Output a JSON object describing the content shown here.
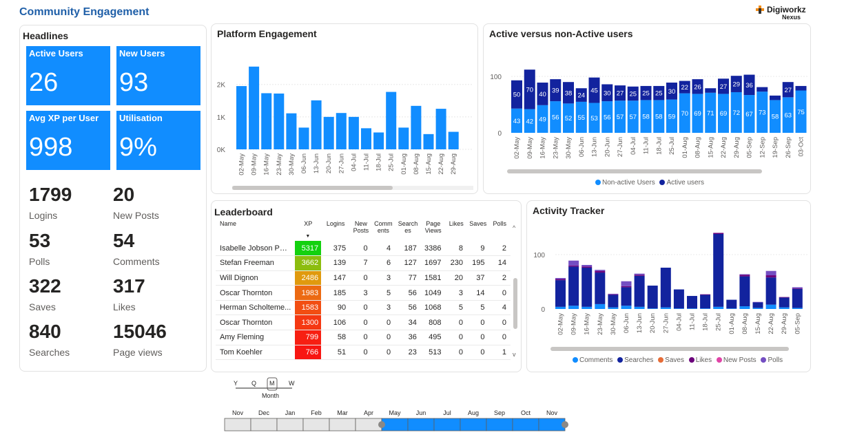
{
  "page": {
    "title": "Community Engagement"
  },
  "logo": {
    "line1": "Digiworkz",
    "line2": "Nexus"
  },
  "headlines": {
    "title": "Headlines",
    "kpis": [
      {
        "label": "Active Users",
        "value": "26"
      },
      {
        "label": "New Users",
        "value": "93"
      },
      {
        "label": "Avg XP per User",
        "value": "998"
      },
      {
        "label": "Utilisation",
        "value": "9%"
      }
    ],
    "stats": [
      {
        "value": "1799",
        "label": "Logins"
      },
      {
        "value": "20",
        "label": "New Posts"
      },
      {
        "value": "53",
        "label": "Polls"
      },
      {
        "value": "54",
        "label": "Comments"
      },
      {
        "value": "322",
        "label": "Saves"
      },
      {
        "value": "317",
        "label": "Likes"
      },
      {
        "value": "840",
        "label": "Searches"
      },
      {
        "value": "15046",
        "label": "Page views"
      }
    ]
  },
  "chart_data": [
    {
      "id": "platform_engagement",
      "type": "bar",
      "title": "Platform Engagement",
      "categories": [
        "02-May",
        "09-May",
        "16-May",
        "23-May",
        "30-May",
        "06-Jun",
        "13-Jun",
        "20-Jun",
        "27-Jun",
        "04-Jul",
        "11-Jul",
        "18-Jul",
        "25-Jul",
        "01-Aug",
        "08-Aug",
        "15-Aug",
        "22-Aug",
        "29-Aug"
      ],
      "values": [
        1950,
        2550,
        1730,
        1720,
        1110,
        670,
        1510,
        1000,
        1120,
        1000,
        650,
        520,
        1770,
        670,
        1340,
        470,
        1250,
        540
      ],
      "yticks": [
        "0K",
        "1K",
        "2K"
      ],
      "ylim": [
        0,
        2800
      ],
      "color": "#118dff"
    },
    {
      "id": "active_vs_nonactive",
      "type": "bar",
      "stacked": true,
      "title": "Active versus non-Active users",
      "categories": [
        "02-May",
        "09-May",
        "16-May",
        "23-May",
        "30-May",
        "06-Jun",
        "13-Jun",
        "20-Jun",
        "27-Jun",
        "04-Jul",
        "11-Jul",
        "18-Jul",
        "25-Jul",
        "01-Aug",
        "08-Aug",
        "15-Aug",
        "22-Aug",
        "29-Aug",
        "05-Sep",
        "12-Sep",
        "19-Sep",
        "26-Sep",
        "03-Oct"
      ],
      "series": [
        {
          "name": "Non-active Users",
          "color": "#118dff",
          "values": [
            43,
            42,
            49,
            56,
            52,
            55,
            53,
            56,
            57,
            57,
            58,
            58,
            59,
            70,
            69,
            71,
            69,
            72,
            67,
            73,
            58,
            63,
            75
          ]
        },
        {
          "name": "Active users",
          "color": "#12239e",
          "values": [
            50,
            70,
            40,
            39,
            38,
            24,
            45,
            30,
            27,
            25,
            25,
            25,
            30,
            22,
            26,
            0,
            27,
            29,
            36,
            0,
            0,
            27,
            0
          ]
        }
      ],
      "yticks": [
        "0",
        "100"
      ],
      "ylim": [
        0,
        120
      ]
    },
    {
      "id": "activity_tracker",
      "type": "bar",
      "stacked": true,
      "title": "Activity Tracker",
      "categories": [
        "02-May",
        "09-May",
        "16-May",
        "23-May",
        "30-May",
        "06-Jun",
        "13-Jun",
        "20-Jun",
        "27-Jun",
        "04-Jul",
        "11-Jul",
        "18-Jul",
        "25-Jul",
        "01-Aug",
        "08-Aug",
        "15-Aug",
        "22-Aug",
        "29-Aug",
        "05-Sep"
      ],
      "series": [
        {
          "name": "Comments",
          "color": "#118dff",
          "values": [
            4,
            6,
            4,
            9,
            3,
            6,
            4,
            1,
            3,
            1,
            1,
            1,
            4,
            1,
            5,
            2,
            8,
            3,
            2
          ]
        },
        {
          "name": "Searches",
          "color": "#12239e",
          "values": [
            49,
            72,
            72,
            58,
            23,
            34,
            57,
            42,
            73,
            35,
            23,
            25,
            134,
            16,
            55,
            10,
            50,
            18,
            35
          ]
        },
        {
          "name": "Saves",
          "color": "#e66c37",
          "values": [
            0,
            0,
            0,
            0,
            0,
            0,
            0,
            0,
            0,
            0,
            0,
            0,
            0,
            0,
            0,
            0,
            0,
            0,
            0
          ]
        },
        {
          "name": "Likes",
          "color": "#6b007b",
          "values": [
            2,
            2,
            2,
            3,
            1,
            2,
            2,
            0,
            0,
            0,
            0,
            1,
            2,
            0,
            3,
            0,
            4,
            1,
            1
          ]
        },
        {
          "name": "New Posts",
          "color": "#e044a7",
          "values": [
            0,
            0,
            0,
            0,
            0,
            0,
            0,
            0,
            0,
            0,
            0,
            0,
            0,
            0,
            0,
            0,
            0,
            0,
            0
          ]
        },
        {
          "name": "Polls",
          "color": "#744ec2",
          "values": [
            2,
            9,
            3,
            2,
            1,
            9,
            2,
            0,
            0,
            0,
            0,
            0,
            0,
            0,
            1,
            1,
            8,
            0,
            2
          ]
        }
      ],
      "yticks": [
        "0",
        "100"
      ],
      "ylim": [
        0,
        150
      ]
    }
  ],
  "leaderboard": {
    "title": "Leaderboard",
    "columns": [
      "Name",
      "XP",
      "Logins",
      "New Posts",
      "Comm ents",
      "Search es",
      "Page Views",
      "Likes",
      "Saves",
      "Polls"
    ],
    "rows": [
      {
        "name": "Isabelle Jobson Par...",
        "xp": "5317",
        "xp_color": "#13d10f",
        "logins": "375",
        "posts": "0",
        "comments": "4",
        "searches": "187",
        "views": "3386",
        "likes": "8",
        "saves": "9",
        "polls": "2"
      },
      {
        "name": "Stefan Freeman",
        "xp": "3662",
        "xp_color": "#8cbd0f",
        "logins": "139",
        "posts": "7",
        "comments": "6",
        "searches": "127",
        "views": "1697",
        "likes": "230",
        "saves": "195",
        "polls": "14"
      },
      {
        "name": "Will Dignon",
        "xp": "2486",
        "xp_color": "#e09a0e",
        "logins": "147",
        "posts": "0",
        "comments": "3",
        "searches": "77",
        "views": "1581",
        "likes": "20",
        "saves": "37",
        "polls": "2"
      },
      {
        "name": "Oscar Thornton",
        "xp": "1983",
        "xp_color": "#ec6a12",
        "logins": "185",
        "posts": "3",
        "comments": "5",
        "searches": "56",
        "views": "1049",
        "likes": "3",
        "saves": "14",
        "polls": "0"
      },
      {
        "name": "Herman Scholteme...",
        "xp": "1583",
        "xp_color": "#f24e12",
        "logins": "90",
        "posts": "0",
        "comments": "3",
        "searches": "56",
        "views": "1068",
        "likes": "5",
        "saves": "5",
        "polls": "4"
      },
      {
        "name": "Oscar  Thornton",
        "xp": "1300",
        "xp_color": "#f53812",
        "logins": "106",
        "posts": "0",
        "comments": "0",
        "searches": "34",
        "views": "808",
        "likes": "0",
        "saves": "0",
        "polls": "0"
      },
      {
        "name": "Amy Fleming",
        "xp": "799",
        "xp_color": "#f71f12",
        "logins": "58",
        "posts": "0",
        "comments": "0",
        "searches": "36",
        "views": "495",
        "likes": "0",
        "saves": "0",
        "polls": "0"
      },
      {
        "name": "Tom Koehler",
        "xp": "766",
        "xp_color": "#f81612",
        "logins": "51",
        "posts": "0",
        "comments": "0",
        "searches": "23",
        "views": "513",
        "likes": "0",
        "saves": "0",
        "polls": "1"
      }
    ]
  },
  "timeline": {
    "granularity_options": [
      "Y",
      "Q",
      "M",
      "W"
    ],
    "granularity_selected": "M",
    "granularity_label": "Month",
    "months": [
      "Nov",
      "Dec",
      "Jan",
      "Feb",
      "Mar",
      "Apr",
      "May",
      "Jun",
      "Jul",
      "Aug",
      "Sep",
      "Oct",
      "Nov"
    ],
    "selected_from": 6,
    "selected_to": 12,
    "selected_color": "#118dff"
  }
}
